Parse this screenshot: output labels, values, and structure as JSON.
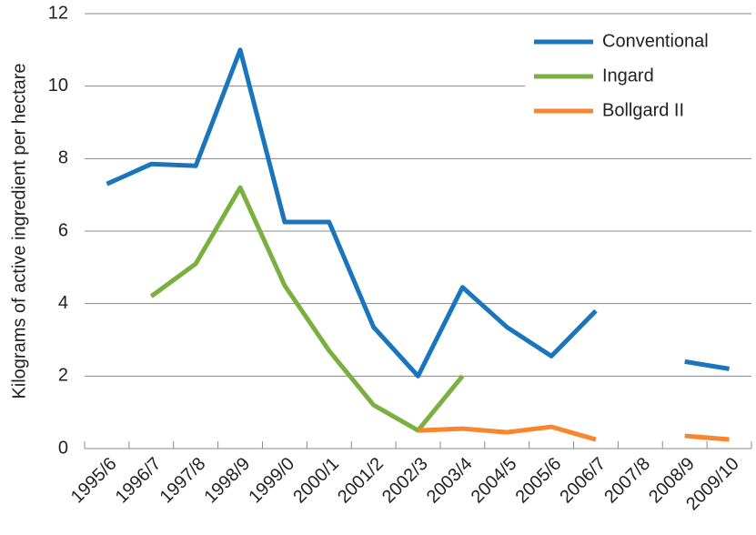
{
  "chart_data": {
    "type": "line",
    "y_label": "Kilograms of active ingredient per hectare",
    "categories": [
      "1995/6",
      "1996/7",
      "1997/8",
      "1998/9",
      "1999/0",
      "2000/1",
      "2001/2",
      "2002/3",
      "2003/4",
      "2004/5",
      "2005/6",
      "2006/7",
      "2007/8",
      "2008/9",
      "2009/10"
    ],
    "series": [
      {
        "name": "Conventional",
        "color": "#1a75bc",
        "values": [
          7.3,
          7.85,
          7.8,
          11.0,
          6.25,
          6.25,
          3.35,
          2.0,
          4.45,
          3.35,
          2.55,
          3.8,
          null,
          2.4,
          2.2
        ]
      },
      {
        "name": "Ingard",
        "color": "#7ab03f",
        "values": [
          null,
          4.2,
          5.1,
          7.2,
          4.5,
          2.7,
          1.2,
          0.5,
          2.0,
          null,
          null,
          null,
          null,
          null,
          null
        ]
      },
      {
        "name": "Bollgard II",
        "color": "#f7862d",
        "values": [
          null,
          null,
          null,
          null,
          null,
          null,
          null,
          0.5,
          0.55,
          0.45,
          0.6,
          0.25,
          null,
          0.35,
          0.25
        ]
      }
    ],
    "ylim": [
      0,
      12
    ],
    "yticks": [
      0,
      2,
      4,
      6,
      8,
      10,
      12
    ],
    "grid": true,
    "legend": "top-right"
  }
}
